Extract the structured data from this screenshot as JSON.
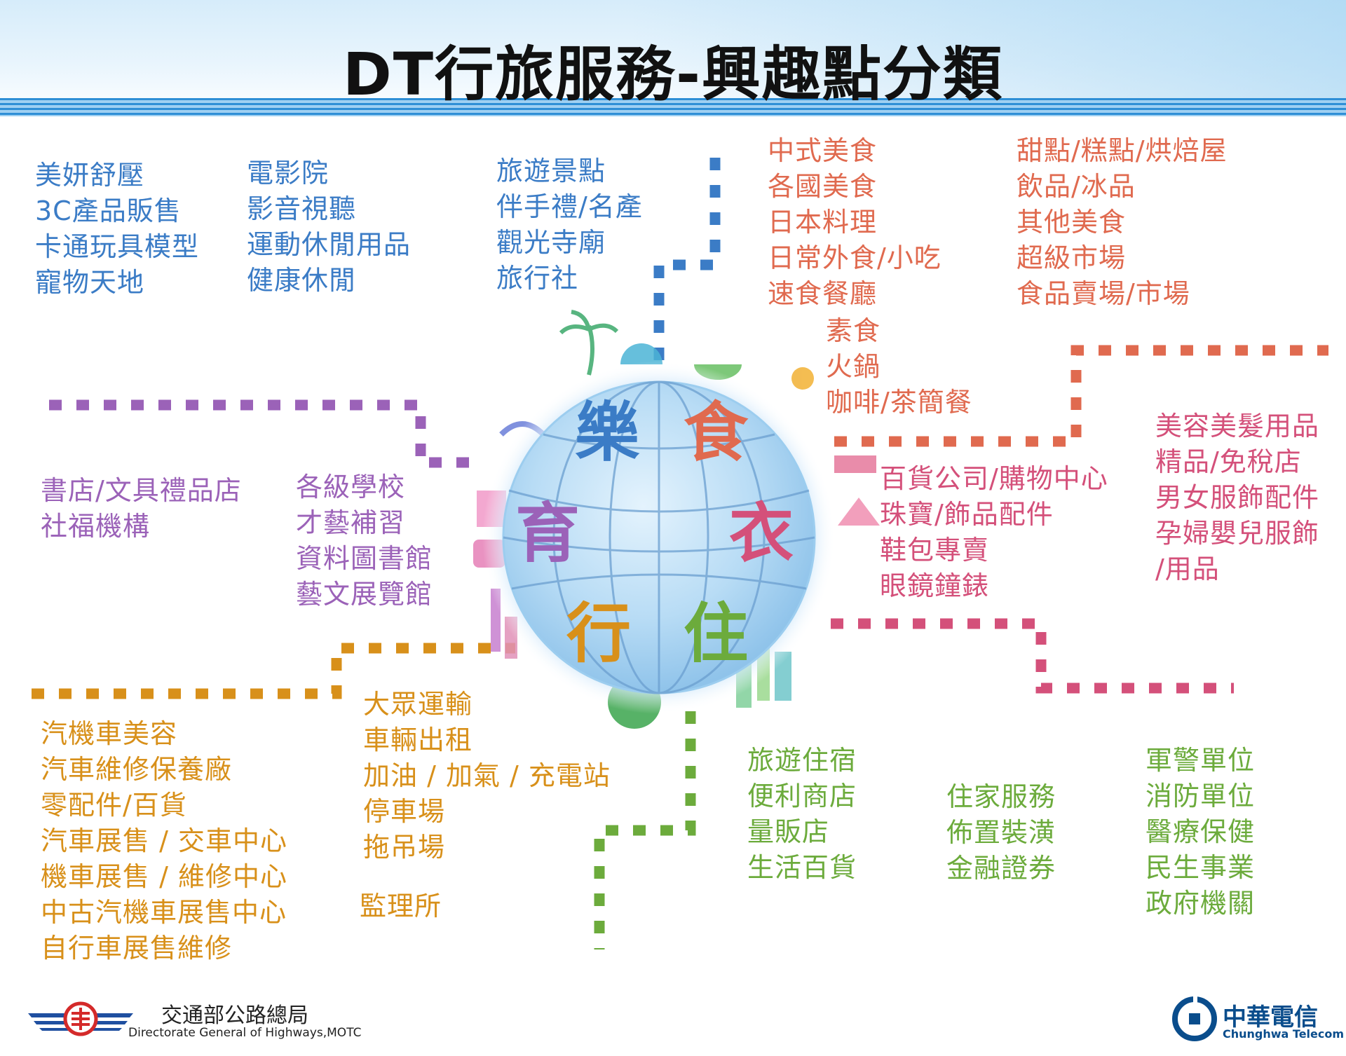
{
  "title": "DT行旅服務-興趣點分類",
  "colors": {
    "blue": "#3b7cc6",
    "red": "#e06a4f",
    "purple": "#9b62b8",
    "pink": "#d4507a",
    "orange": "#d8901a",
    "green": "#6cab3c"
  },
  "globe": {
    "chars": [
      {
        "char": "樂",
        "color": "#3b7cc6"
      },
      {
        "char": "食",
        "color": "#e06a4f"
      },
      {
        "char": "育",
        "color": "#9b62b8"
      },
      {
        "char": "衣",
        "color": "#d4507a"
      },
      {
        "char": "行",
        "color": "#d8901a"
      },
      {
        "char": "住",
        "color": "#6cab3c"
      }
    ]
  },
  "groups": {
    "le_col1": [
      "美妍舒壓",
      "3C產品販售",
      "卡通玩具模型",
      "寵物天地"
    ],
    "le_col2": [
      "電影院",
      "影音視聽",
      "運動休閒用品",
      "健康休閒"
    ],
    "le_col3": [
      "旅遊景點",
      "伴手禮/名產",
      "觀光寺廟",
      "旅行社"
    ],
    "shi_col1": [
      "中式美食",
      "各國美食",
      "日本料理",
      "日常外食/小吃",
      "速食餐廳"
    ],
    "shi_col1b": [
      "素食",
      "火鍋",
      "咖啡/茶簡餐"
    ],
    "shi_col2": [
      "甜點/糕點/烘焙屋",
      "飲品/冰品",
      "其他美食",
      "超級市場",
      "食品賣場/市場"
    ],
    "yu_col1": [
      "書店/文具禮品店",
      "社福機構"
    ],
    "yu_col2": [
      "各級學校",
      "才藝補習",
      "資料圖書館",
      "藝文展覽館"
    ],
    "yi_col1": [
      "百貨公司/購物中心",
      "珠寶/飾品配件",
      "鞋包專賣",
      "眼鏡鐘錶"
    ],
    "yi_col2": [
      "美容美髮用品",
      "精品/免稅店",
      "男女服飾配件",
      "孕婦嬰兒服飾",
      "/用品"
    ],
    "xing_col1": [
      "汽機車美容",
      "汽車維修保養廠",
      "零配件/百貨",
      "汽車展售 / 交車中心",
      "機車展售 / 維修中心",
      "中古汽機車展售中心",
      "自行車展售維修"
    ],
    "xing_col2": [
      "大眾運輸",
      "車輛出租",
      "加油 / 加氣 / 充電站",
      "停車場",
      "拖吊場"
    ],
    "xing_col2b": "監理所",
    "zhu_col1": [
      "旅遊住宿",
      "便利商店",
      "量販店",
      "生活百貨"
    ],
    "zhu_col2": [
      "住家服務",
      "佈置裝潢",
      "金融證券"
    ],
    "zhu_col3": [
      "軍警單位",
      "消防單位",
      "醫療保健",
      "民生事業",
      "政府機關"
    ]
  },
  "footer": {
    "left_org_zh": "交通部公路總局",
    "left_org_en": "Directorate General of Highways,MOTC",
    "right_org_zh": "中華電信",
    "right_org_en": "Chunghwa Telecom"
  }
}
